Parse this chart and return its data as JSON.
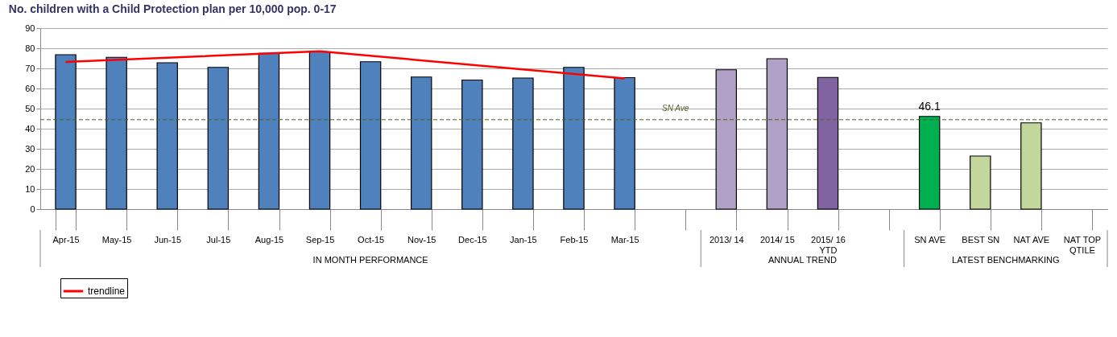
{
  "chart_data": {
    "type": "bar",
    "title": "No. children with a Child Protection plan per 10,000 pop.  0-17",
    "categories": [
      "Apr-15",
      "May-15",
      "Jun-15",
      "Jul-15",
      "Aug-15",
      "Sep-15",
      "Oct-15",
      "Nov-15",
      "Dec-15",
      "Jan-15",
      "Feb-15",
      "Mar-15",
      null,
      "2013/ 14",
      "2014/ 15",
      "2015/ 16\nYTD",
      null,
      "SN AVE",
      "BEST SN",
      "NAT AVE",
      "NAT TOP\nQTILE"
    ],
    "series": [
      {
        "values": [
          76.8,
          75.5,
          72.8,
          70.5,
          77.5,
          78.2,
          73.3,
          65.7,
          64.2,
          65.2,
          70.5,
          65.4,
          null,
          69.3,
          74.8,
          65.5,
          null,
          46.1,
          26.4,
          42.9,
          null
        ],
        "colors": [
          "#4f81bd",
          "#4f81bd",
          "#4f81bd",
          "#4f81bd",
          "#4f81bd",
          "#4f81bd",
          "#4f81bd",
          "#4f81bd",
          "#4f81bd",
          "#4f81bd",
          "#4f81bd",
          "#4f81bd",
          "#4f81bd",
          "#b2a1c7",
          "#b2a1c7",
          "#8064a2",
          "#8064a2",
          "#00b050",
          "#c3d69b",
          "#c3d69b",
          "#c3d69b"
        ],
        "value_labels": [
          null,
          null,
          null,
          null,
          null,
          null,
          null,
          null,
          null,
          null,
          null,
          null,
          null,
          null,
          null,
          null,
          null,
          "46.1",
          null,
          null,
          null
        ]
      },
      {
        "type": "line",
        "name": "trendline",
        "color": "#ff0000",
        "x": [
          "Apr-15",
          "Sep-15",
          "Mar-15"
        ],
        "values": [
          73.2,
          78.5,
          65.0
        ]
      }
    ],
    "ylim": [
      0,
      90
    ],
    "yticks": [
      0,
      10,
      20,
      30,
      40,
      50,
      60,
      70,
      80,
      90
    ],
    "grid": "y",
    "legend": "bottom left",
    "ref_lines": [
      {
        "axis": "y",
        "value": 44.5,
        "label": "SN Ave",
        "color": "#4f6228",
        "line_style": "dashed"
      }
    ],
    "annotations": [
      "IN MONTH PERFORMANCE",
      "ANNUAL TREND",
      "LATEST BENCHMARKING"
    ]
  }
}
